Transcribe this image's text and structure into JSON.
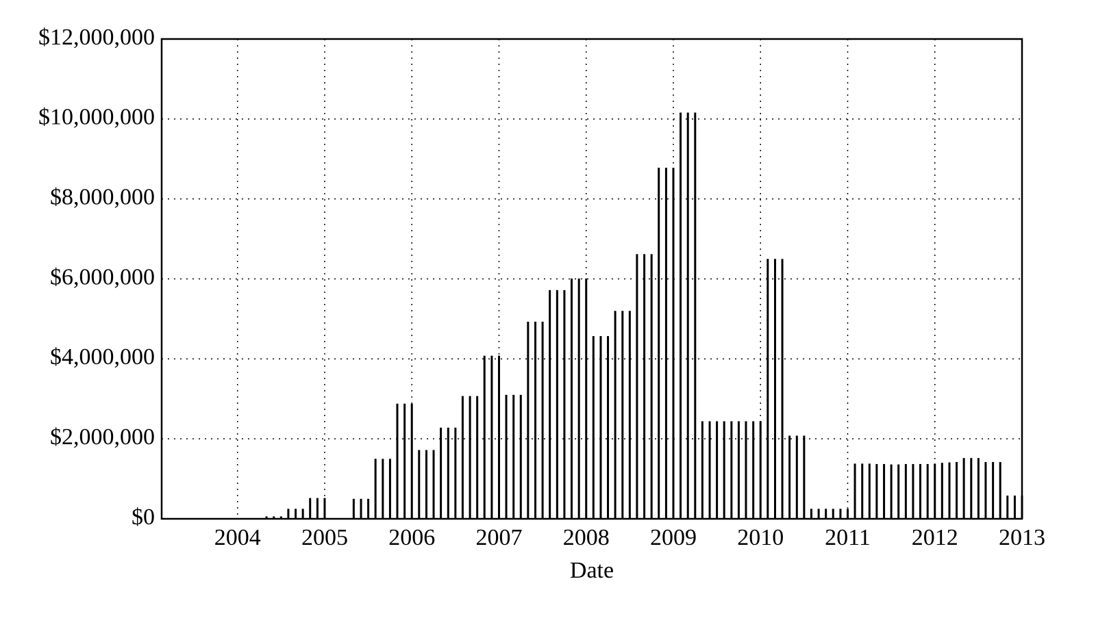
{
  "chart_data": {
    "type": "bar",
    "x_label": "Date",
    "color": "#000000",
    "grid": true,
    "x": [
      2004.333,
      2004.417,
      2004.5,
      2004.583,
      2004.667,
      2004.75,
      2004.833,
      2004.917,
      2005.0,
      2005.083,
      2005.167,
      2005.25,
      2005.333,
      2005.417,
      2005.5,
      2005.583,
      2005.667,
      2005.75,
      2005.833,
      2005.917,
      2006.0,
      2006.083,
      2006.167,
      2006.25,
      2006.333,
      2006.417,
      2006.5,
      2006.583,
      2006.667,
      2006.75,
      2006.833,
      2006.917,
      2007.0,
      2007.083,
      2007.167,
      2007.25,
      2007.333,
      2007.417,
      2007.5,
      2007.583,
      2007.667,
      2007.75,
      2007.833,
      2007.917,
      2008.0,
      2008.083,
      2008.167,
      2008.25,
      2008.333,
      2008.417,
      2008.5,
      2008.583,
      2008.667,
      2008.75,
      2008.833,
      2008.917,
      2009.0,
      2009.083,
      2009.167,
      2009.25,
      2009.333,
      2009.417,
      2009.5,
      2009.583,
      2009.667,
      2009.75,
      2009.833,
      2009.917,
      2010.0,
      2010.083,
      2010.167,
      2010.25,
      2010.333,
      2010.417,
      2010.5,
      2010.583,
      2010.667,
      2010.75,
      2010.833,
      2010.917,
      2011.0,
      2011.083,
      2011.167,
      2011.25,
      2011.333,
      2011.417,
      2011.5,
      2011.583,
      2011.667,
      2011.75,
      2011.833,
      2011.917,
      2012.0,
      2012.083,
      2012.167,
      2012.25,
      2012.333,
      2012.417,
      2012.5,
      2012.583,
      2012.667,
      2012.75,
      2012.833,
      2012.917,
      2013.0
    ],
    "values": [
      60000,
      60000,
      60000,
      250000,
      250000,
      250000,
      520000,
      520000,
      520000,
      10000,
      10000,
      10000,
      500000,
      500000,
      500000,
      1500000,
      1500000,
      1500000,
      2880000,
      2880000,
      2880000,
      1720000,
      1720000,
      1720000,
      2280000,
      2280000,
      2280000,
      3070000,
      3070000,
      3070000,
      4080000,
      4080000,
      4080000,
      3100000,
      3100000,
      3100000,
      4930000,
      4930000,
      4930000,
      5720000,
      5720000,
      5720000,
      6010000,
      6010000,
      6010000,
      4570000,
      4570000,
      4570000,
      5200000,
      5200000,
      5200000,
      6620000,
      6620000,
      6620000,
      8780000,
      8780000,
      8780000,
      10160000,
      10160000,
      10160000,
      2440000,
      2440000,
      2440000,
      2440000,
      2440000,
      2440000,
      2440000,
      2440000,
      2440000,
      6500000,
      6500000,
      6500000,
      2080000,
      2080000,
      2080000,
      250000,
      250000,
      250000,
      250000,
      250000,
      250000,
      1380000,
      1380000,
      1380000,
      1370000,
      1370000,
      1360000,
      1360000,
      1370000,
      1370000,
      1370000,
      1370000,
      1380000,
      1400000,
      1410000,
      1420000,
      1520000,
      1520000,
      1520000,
      1420000,
      1420000,
      1420000,
      580000,
      580000,
      580000
    ],
    "xlim": [
      2003.13,
      2013
    ],
    "xticks": [
      2004,
      2005,
      2006,
      2007,
      2008,
      2009,
      2010,
      2011,
      2012,
      2013
    ],
    "ylim": [
      0,
      12000000
    ],
    "yticks": [
      {
        "value": 0,
        "label": "$0"
      },
      {
        "value": 2000000,
        "label": "$2,000,000"
      },
      {
        "value": 4000000,
        "label": "$4,000,000"
      },
      {
        "value": 6000000,
        "label": "$6,000,000"
      },
      {
        "value": 8000000,
        "label": "$8,000,000"
      },
      {
        "value": 10000000,
        "label": "$10,000,000"
      },
      {
        "value": 12000000,
        "label": "$12,000,000"
      }
    ]
  }
}
